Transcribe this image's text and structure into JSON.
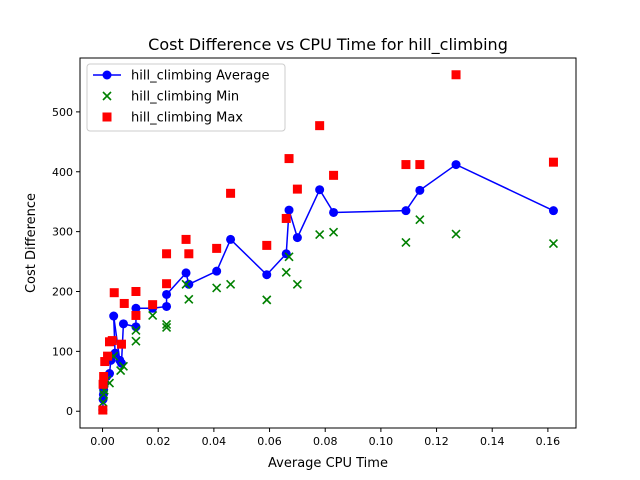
{
  "chart_data": {
    "type": "scatter",
    "title": "Cost Difference vs CPU Time for hill_climbing",
    "xlabel": "Average CPU Time",
    "ylabel": "Cost Difference",
    "xlim": [
      -0.0081,
      0.1701
    ],
    "ylim": [
      -28,
      590
    ],
    "x_ticks": [
      0.0,
      0.02,
      0.04,
      0.06,
      0.08,
      0.1,
      0.12,
      0.14,
      0.16
    ],
    "x_tick_labels": [
      "0.00",
      "0.02",
      "0.04",
      "0.06",
      "0.08",
      "0.10",
      "0.12",
      "0.14",
      "0.16"
    ],
    "y_ticks": [
      0,
      100,
      200,
      300,
      400,
      500
    ],
    "y_tick_labels": [
      "0",
      "100",
      "200",
      "300",
      "400",
      "500"
    ],
    "grid": false,
    "legend_position": "top-left",
    "series": [
      {
        "name": "hill_climbing Average",
        "kind": "line-marker",
        "color": "#0000ff",
        "points": [
          [
            0.0001,
            2
          ],
          [
            0.0002,
            20
          ],
          [
            0.0003,
            28
          ],
          [
            0.0004,
            36
          ],
          [
            0.0006,
            45
          ],
          [
            0.0015,
            58
          ],
          [
            0.0025,
            63
          ],
          [
            0.003,
            85
          ],
          [
            0.0045,
            97
          ],
          [
            0.004,
            159
          ],
          [
            0.0062,
            85
          ],
          [
            0.0068,
            80
          ],
          [
            0.0075,
            146
          ],
          [
            0.012,
            141
          ],
          [
            0.012,
            172
          ],
          [
            0.018,
            172
          ],
          [
            0.023,
            175
          ],
          [
            0.023,
            195
          ],
          [
            0.03,
            231
          ],
          [
            0.031,
            212
          ],
          [
            0.041,
            234
          ],
          [
            0.046,
            287
          ],
          [
            0.059,
            228
          ],
          [
            0.066,
            263
          ],
          [
            0.067,
            336
          ],
          [
            0.07,
            290
          ],
          [
            0.078,
            370
          ],
          [
            0.083,
            332
          ],
          [
            0.109,
            335
          ],
          [
            0.114,
            369
          ],
          [
            0.127,
            412
          ],
          [
            0.162,
            335
          ]
        ]
      },
      {
        "name": "hill_climbing Min",
        "kind": "x-marker",
        "color": "#008000",
        "points": [
          [
            0.0001,
            2
          ],
          [
            0.0002,
            15
          ],
          [
            0.0004,
            28
          ],
          [
            0.0006,
            35
          ],
          [
            0.0015,
            52
          ],
          [
            0.0025,
            47
          ],
          [
            0.004,
            92
          ],
          [
            0.0065,
            68
          ],
          [
            0.0075,
            75
          ],
          [
            0.012,
            117
          ],
          [
            0.012,
            135
          ],
          [
            0.018,
            160
          ],
          [
            0.023,
            140
          ],
          [
            0.023,
            145
          ],
          [
            0.03,
            212
          ],
          [
            0.031,
            187
          ],
          [
            0.041,
            206
          ],
          [
            0.046,
            212
          ],
          [
            0.059,
            186
          ],
          [
            0.066,
            232
          ],
          [
            0.067,
            258
          ],
          [
            0.07,
            212
          ],
          [
            0.078,
            295
          ],
          [
            0.083,
            299
          ],
          [
            0.109,
            282
          ],
          [
            0.114,
            320
          ],
          [
            0.127,
            296
          ],
          [
            0.162,
            280
          ]
        ]
      },
      {
        "name": "hill_climbing Max",
        "kind": "square-marker",
        "color": "#ff0000",
        "points": [
          [
            0.0001,
            2
          ],
          [
            0.0002,
            45
          ],
          [
            0.0004,
            58
          ],
          [
            0.0008,
            83
          ],
          [
            0.0018,
            92
          ],
          [
            0.0025,
            116
          ],
          [
            0.0035,
            118
          ],
          [
            0.0042,
            198
          ],
          [
            0.0068,
            112
          ],
          [
            0.0078,
            180
          ],
          [
            0.012,
            160
          ],
          [
            0.012,
            200
          ],
          [
            0.018,
            178
          ],
          [
            0.023,
            213
          ],
          [
            0.023,
            263
          ],
          [
            0.03,
            287
          ],
          [
            0.031,
            263
          ],
          [
            0.041,
            272
          ],
          [
            0.046,
            364
          ],
          [
            0.059,
            277
          ],
          [
            0.066,
            322
          ],
          [
            0.067,
            422
          ],
          [
            0.07,
            371
          ],
          [
            0.078,
            477
          ],
          [
            0.083,
            394
          ],
          [
            0.109,
            412
          ],
          [
            0.114,
            412
          ],
          [
            0.127,
            562
          ],
          [
            0.162,
            416
          ]
        ]
      }
    ]
  }
}
